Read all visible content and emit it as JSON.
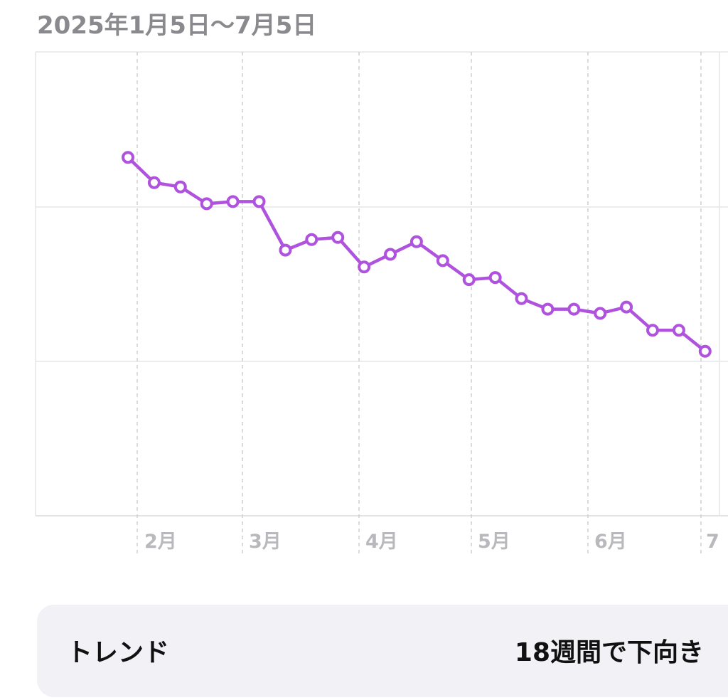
{
  "header": {
    "date_range": "2025年1月5日〜7月5日"
  },
  "chart_data": {
    "type": "line",
    "x_tick_labels": [
      "2月",
      "3月",
      "4月",
      "5月",
      "6月",
      "7"
    ],
    "series": [
      {
        "values": [
          68.0,
          66.8,
          66.6,
          65.8,
          65.9,
          65.9,
          63.6,
          64.1,
          64.2,
          62.8,
          63.4,
          64.0,
          63.1,
          62.2,
          62.3,
          61.3,
          60.8,
          60.8,
          60.6,
          60.9,
          59.8,
          59.8,
          58.8
        ],
        "color": "#af52de"
      }
    ],
    "ylim": [
      51,
      73
    ],
    "grid": true,
    "marker": "hollow-circle"
  },
  "trend": {
    "label": "トレンド",
    "value": "18週間で下向き"
  }
}
